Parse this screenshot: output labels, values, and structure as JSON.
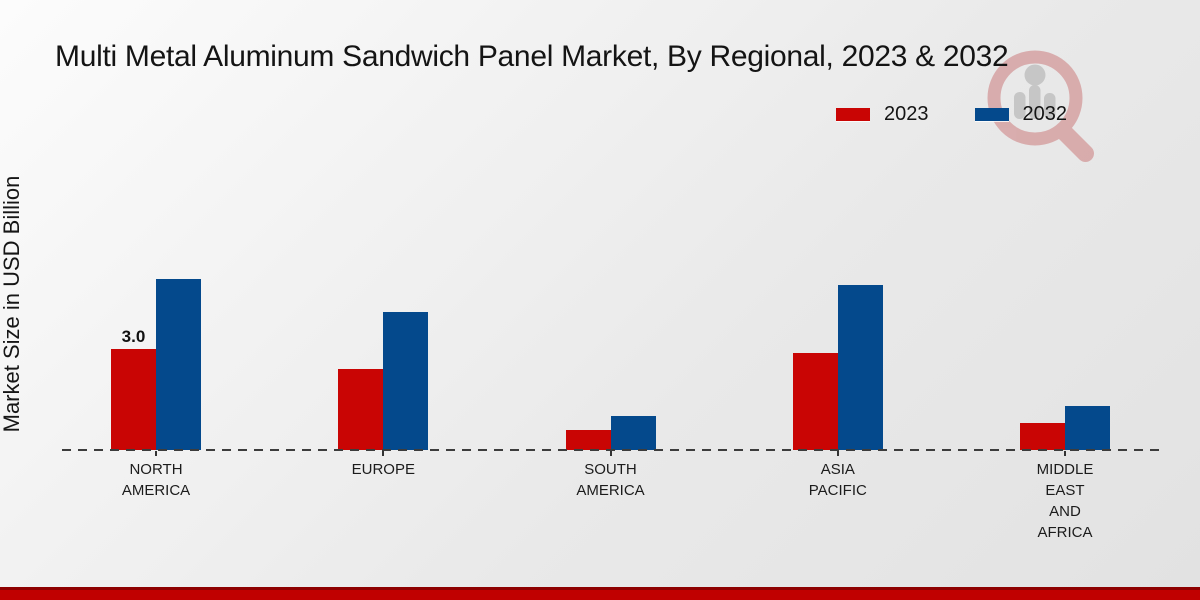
{
  "title": "Multi Metal Aluminum Sandwich Panel Market, By Regional, 2023 & 2032",
  "colors": {
    "series_2023": "#c90504",
    "series_2032": "#04498c",
    "footer_dark_red": "#8e0000",
    "footer_bright_red": "#c00000",
    "text": "#141414"
  },
  "legend": {
    "items": [
      {
        "label": "2023",
        "color": "#c90504"
      },
      {
        "label": "2032",
        "color": "#04498c"
      }
    ]
  },
  "watermark_icon": "magnifier-bar-chart-logo",
  "chart_data": {
    "type": "bar",
    "title": "Multi Metal Aluminum Sandwich Panel Market, By Regional, 2023 & 2032",
    "xlabel": "",
    "ylabel": "Market Size in USD Billion",
    "ylim": [
      0,
      5.5
    ],
    "grid": false,
    "legend_position": "top-right",
    "baseline_style": "dashed",
    "categories": [
      "NORTH AMERICA",
      "EUROPE",
      "SOUTH AMERICA",
      "ASIA PACIFIC",
      "MIDDLE EAST AND AFRICA"
    ],
    "category_label_lines": [
      [
        "NORTH",
        "AMERICA"
      ],
      [
        "EUROPE"
      ],
      [
        "SOUTH",
        "AMERICA"
      ],
      [
        "ASIA",
        "PACIFIC"
      ],
      [
        "MIDDLE",
        "EAST",
        "AND",
        "AFRICA"
      ]
    ],
    "series": [
      {
        "name": "2023",
        "color": "#c90504",
        "values": [
          3.0,
          2.4,
          0.6,
          2.9,
          0.8
        ]
      },
      {
        "name": "2032",
        "color": "#04498c",
        "values": [
          5.1,
          4.1,
          1.0,
          4.9,
          1.3
        ]
      }
    ],
    "data_labels": [
      {
        "category_index": 0,
        "series": "2023",
        "text": "3.0"
      }
    ]
  }
}
